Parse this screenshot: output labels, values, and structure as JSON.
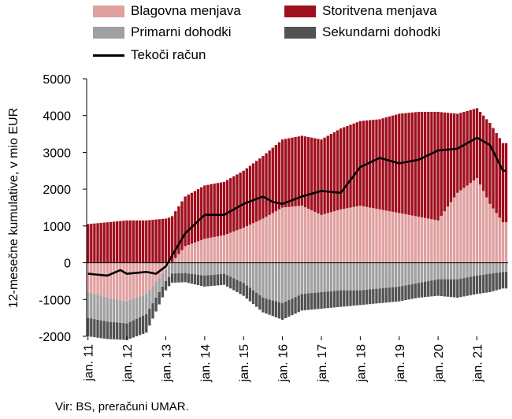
{
  "chart_data": {
    "type": "bar",
    "ylabel": "12-mesečne kumulative, v mio EUR",
    "ylim": [
      -2000,
      5000
    ],
    "yticks": [
      5000,
      4000,
      3000,
      2000,
      1000,
      0,
      -1000,
      -2000
    ],
    "ytick_labels": [
      "5000",
      "4000",
      "3000",
      "2000",
      "1000",
      "0",
      "-1000",
      "-2000"
    ],
    "xtick_labels": [
      "jan. 11",
      "jan. 12",
      "jan. 13",
      "jan. 14",
      "jan. 15",
      "jan. 16",
      "jan. 17",
      "jan. 18",
      "jan. 19",
      "jan. 20",
      "jan. 21"
    ],
    "source": "Vir: BS, preračuni UMAR.",
    "series": [
      {
        "name": "Blagovna menjava",
        "color": "#e0a0a0",
        "key_points": [
          [
            "2011-01",
            -800
          ],
          [
            "2011-07",
            -950
          ],
          [
            "2012-01",
            -1050
          ],
          [
            "2012-07",
            -850
          ],
          [
            "2013-01",
            -200
          ],
          [
            "2013-07",
            450
          ],
          [
            "2014-01",
            650
          ],
          [
            "2014-07",
            750
          ],
          [
            "2015-01",
            950
          ],
          [
            "2015-07",
            1200
          ],
          [
            "2016-01",
            1500
          ],
          [
            "2016-07",
            1550
          ],
          [
            "2017-01",
            1300
          ],
          [
            "2017-07",
            1450
          ],
          [
            "2018-01",
            1550
          ],
          [
            "2018-07",
            1450
          ],
          [
            "2019-01",
            1350
          ],
          [
            "2019-07",
            1250
          ],
          [
            "2020-01",
            1150
          ],
          [
            "2020-07",
            1900
          ],
          [
            "2021-01",
            2300
          ],
          [
            "2021-05",
            1600
          ],
          [
            "2021-09",
            1100
          ]
        ]
      },
      {
        "name": "Storitvena menjava",
        "color": "#a00f1e",
        "key_points": [
          [
            "2011-01",
            1050
          ],
          [
            "2012-01",
            1150
          ],
          [
            "2012-07",
            1150
          ],
          [
            "2013-01",
            1200
          ],
          [
            "2013-07",
            1350
          ],
          [
            "2014-01",
            1450
          ],
          [
            "2014-07",
            1450
          ],
          [
            "2015-01",
            1550
          ],
          [
            "2015-07",
            1700
          ],
          [
            "2016-01",
            1850
          ],
          [
            "2016-07",
            1900
          ],
          [
            "2017-01",
            2050
          ],
          [
            "2017-07",
            2200
          ],
          [
            "2018-01",
            2300
          ],
          [
            "2018-07",
            2450
          ],
          [
            "2019-01",
            2700
          ],
          [
            "2019-07",
            2850
          ],
          [
            "2020-01",
            2950
          ],
          [
            "2020-07",
            2150
          ],
          [
            "2021-01",
            1900
          ],
          [
            "2021-05",
            2200
          ],
          [
            "2021-09",
            2150
          ]
        ]
      },
      {
        "name": "Primarni dohodki",
        "color": "#a0a0a0",
        "key_points": [
          [
            "2011-01",
            -700
          ],
          [
            "2012-01",
            -600
          ],
          [
            "2012-07",
            -550
          ],
          [
            "2013-01",
            -300
          ],
          [
            "2013-07",
            -280
          ],
          [
            "2014-01",
            -350
          ],
          [
            "2014-07",
            -300
          ],
          [
            "2015-01",
            -550
          ],
          [
            "2015-07",
            -950
          ],
          [
            "2016-01",
            -1100
          ],
          [
            "2016-07",
            -850
          ],
          [
            "2017-01",
            -800
          ],
          [
            "2017-07",
            -750
          ],
          [
            "2018-01",
            -750
          ],
          [
            "2018-07",
            -700
          ],
          [
            "2019-01",
            -650
          ],
          [
            "2019-07",
            -550
          ],
          [
            "2020-01",
            -450
          ],
          [
            "2020-07",
            -450
          ],
          [
            "2021-01",
            -350
          ],
          [
            "2021-05",
            -300
          ],
          [
            "2021-09",
            -250
          ]
        ]
      },
      {
        "name": "Sekundarni dohodki",
        "color": "#525252",
        "key_points": [
          [
            "2011-01",
            -500
          ],
          [
            "2012-01",
            -450
          ],
          [
            "2012-07",
            -500
          ],
          [
            "2013-01",
            -250
          ],
          [
            "2013-07",
            -250
          ],
          [
            "2014-01",
            -300
          ],
          [
            "2014-07",
            -300
          ],
          [
            "2015-01",
            -350
          ],
          [
            "2015-07",
            -400
          ],
          [
            "2016-01",
            -450
          ],
          [
            "2016-07",
            -450
          ],
          [
            "2017-01",
            -450
          ],
          [
            "2017-07",
            -450
          ],
          [
            "2018-01",
            -400
          ],
          [
            "2018-07",
            -400
          ],
          [
            "2019-01",
            -400
          ],
          [
            "2019-07",
            -400
          ],
          [
            "2020-01",
            -450
          ],
          [
            "2020-07",
            -500
          ],
          [
            "2021-01",
            -500
          ],
          [
            "2021-05",
            -500
          ],
          [
            "2021-09",
            -450
          ]
        ]
      },
      {
        "name": "Tekoči račun",
        "color": "#000000",
        "type": "line",
        "key_points": [
          [
            "2011-01",
            -300
          ],
          [
            "2011-07",
            -350
          ],
          [
            "2011-11",
            -200
          ],
          [
            "2012-01",
            -300
          ],
          [
            "2012-07",
            -250
          ],
          [
            "2012-10",
            -300
          ],
          [
            "2013-01",
            -100
          ],
          [
            "2013-07",
            800
          ],
          [
            "2014-01",
            1300
          ],
          [
            "2014-07",
            1300
          ],
          [
            "2015-01",
            1600
          ],
          [
            "2015-07",
            1800
          ],
          [
            "2015-10",
            1650
          ],
          [
            "2016-01",
            1600
          ],
          [
            "2016-07",
            1800
          ],
          [
            "2017-01",
            1950
          ],
          [
            "2017-07",
            1900
          ],
          [
            "2018-01",
            2600
          ],
          [
            "2018-07",
            2850
          ],
          [
            "2019-01",
            2700
          ],
          [
            "2019-07",
            2800
          ],
          [
            "2020-01",
            3050
          ],
          [
            "2020-07",
            3100
          ],
          [
            "2021-01",
            3400
          ],
          [
            "2021-05",
            3200
          ],
          [
            "2021-09",
            2500
          ]
        ]
      }
    ]
  }
}
